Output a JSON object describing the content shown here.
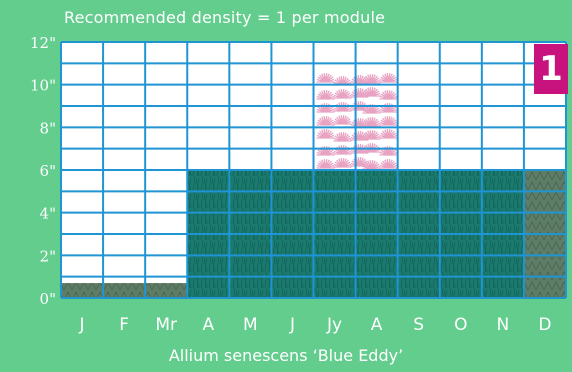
{
  "header": {
    "density_text": "Recommended density = 1 per module"
  },
  "badge": {
    "label": "1"
  },
  "species": {
    "name": "Allium senescens ‘Blue Eddy’"
  },
  "colors": {
    "background": "#63cd8d",
    "grid": "#1f95d4",
    "foliage": "#1a7a6e",
    "dormant": "#5e7d66",
    "flower": "#e8a3c3",
    "badge": "#c8127e"
  },
  "chart_data": {
    "type": "bar",
    "categories": [
      "J",
      "F",
      "Mr",
      "A",
      "M",
      "J",
      "Jy",
      "A",
      "S",
      "O",
      "N",
      "D"
    ],
    "y_tick_labels": [
      "0\"",
      "2\"",
      "4\"",
      "6\"",
      "8\"",
      "10\"",
      "12\""
    ],
    "ylim": [
      0,
      12
    ],
    "grid": true,
    "series": [
      {
        "type": "foliage",
        "values": [
          0.7,
          0.7,
          0.7,
          6,
          6,
          6,
          6,
          6,
          6,
          6,
          6,
          6
        ],
        "state": [
          "dormant",
          "dormant",
          "dormant",
          "active",
          "active",
          "active",
          "active",
          "active",
          "active",
          "active",
          "active",
          "dormant"
        ]
      },
      {
        "type": "flowers",
        "months": [
          "Jy",
          "A"
        ],
        "range": [
          6,
          10.5
        ]
      }
    ]
  }
}
